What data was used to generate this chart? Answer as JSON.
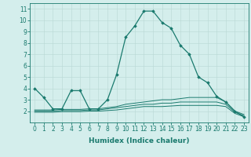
{
  "series": [
    {
      "x": [
        0,
        1,
        2,
        3,
        4,
        5,
        6,
        7,
        8,
        9,
        10,
        11,
        12,
        13,
        14,
        15,
        16,
        17,
        18,
        19,
        20,
        21,
        22,
        23
      ],
      "y": [
        4.0,
        3.2,
        2.2,
        2.2,
        3.8,
        3.8,
        2.2,
        2.2,
        3.0,
        5.2,
        8.5,
        9.5,
        10.8,
        10.8,
        9.8,
        9.3,
        7.8,
        7.0,
        5.0,
        4.5,
        3.3,
        2.8,
        2.0,
        1.5
      ],
      "color": "#1a7a6e",
      "marker": "D",
      "markersize": 1.8,
      "linewidth": 0.9
    },
    {
      "x": [
        0,
        1,
        2,
        3,
        4,
        5,
        6,
        7,
        8,
        9,
        10,
        11,
        12,
        13,
        14,
        15,
        16,
        17,
        18,
        19,
        20,
        21,
        22,
        23
      ],
      "y": [
        2.1,
        2.1,
        2.1,
        2.15,
        2.15,
        2.15,
        2.2,
        2.2,
        2.3,
        2.4,
        2.6,
        2.7,
        2.8,
        2.9,
        3.0,
        3.0,
        3.1,
        3.2,
        3.2,
        3.2,
        3.2,
        2.8,
        2.0,
        1.7
      ],
      "color": "#1a7a6e",
      "marker": null,
      "markersize": 0,
      "linewidth": 0.7
    },
    {
      "x": [
        0,
        1,
        2,
        3,
        4,
        5,
        6,
        7,
        8,
        9,
        10,
        11,
        12,
        13,
        14,
        15,
        16,
        17,
        18,
        19,
        20,
        21,
        22,
        23
      ],
      "y": [
        2.0,
        2.0,
        2.0,
        2.05,
        2.05,
        2.05,
        2.1,
        2.1,
        2.2,
        2.3,
        2.4,
        2.5,
        2.6,
        2.6,
        2.7,
        2.7,
        2.8,
        2.8,
        2.8,
        2.8,
        2.8,
        2.6,
        1.9,
        1.6
      ],
      "color": "#1a7a6e",
      "marker": null,
      "markersize": 0,
      "linewidth": 0.7
    },
    {
      "x": [
        0,
        1,
        2,
        3,
        4,
        5,
        6,
        7,
        8,
        9,
        10,
        11,
        12,
        13,
        14,
        15,
        16,
        17,
        18,
        19,
        20,
        21,
        22,
        23
      ],
      "y": [
        1.9,
        1.9,
        1.9,
        1.95,
        1.95,
        1.95,
        2.0,
        2.0,
        2.05,
        2.1,
        2.2,
        2.3,
        2.4,
        2.4,
        2.4,
        2.45,
        2.5,
        2.5,
        2.5,
        2.5,
        2.5,
        2.4,
        1.8,
        1.5
      ],
      "color": "#1a7a6e",
      "marker": null,
      "markersize": 0,
      "linewidth": 0.7
    }
  ],
  "xlim": [
    -0.5,
    23.5
  ],
  "ylim": [
    1.0,
    11.5
  ],
  "xticks": [
    0,
    1,
    2,
    3,
    4,
    5,
    6,
    7,
    8,
    9,
    10,
    11,
    12,
    13,
    14,
    15,
    16,
    17,
    18,
    19,
    20,
    21,
    22,
    23
  ],
  "yticks": [
    2,
    3,
    4,
    5,
    6,
    7,
    8,
    9,
    10,
    11
  ],
  "xlabel": "Humidex (Indice chaleur)",
  "xlabel_fontsize": 6.5,
  "tick_fontsize": 5.5,
  "bg_color": "#d4eeec",
  "grid_color": "#b8d8d4",
  "line_color": "#1a7a6e"
}
